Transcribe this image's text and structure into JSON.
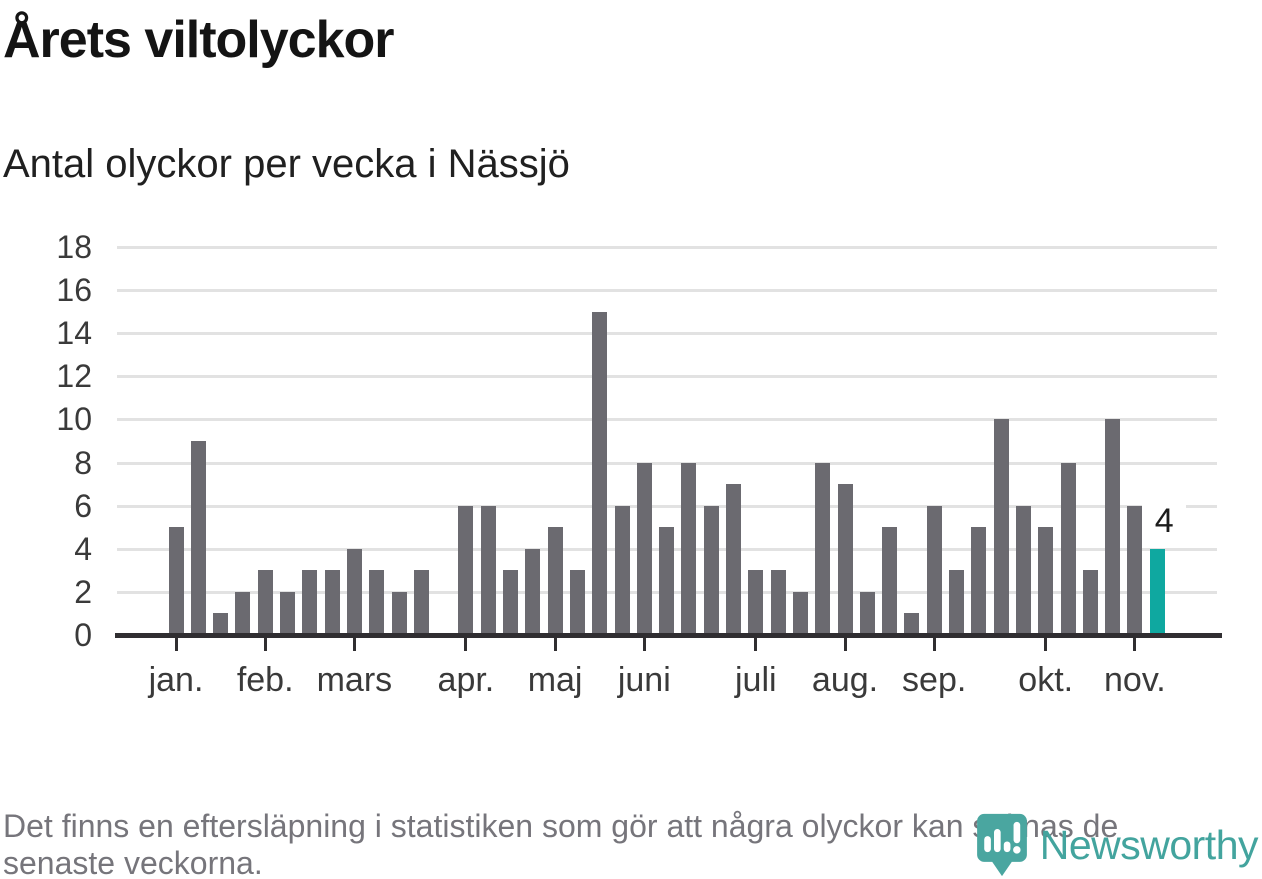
{
  "title": "Årets viltolyckor",
  "subtitle": "Antal olyckor per vecka i Nässjö",
  "footer": {
    "lines": [
      "Det finns en eftersläpning i statistiken som gör att några olyckor kan saknas de",
      "senaste veckorna."
    ]
  },
  "logo": {
    "wordmark": "Newsworthy",
    "icon": "newsworthy-pin-barchart-icon"
  },
  "colors": {
    "bar": "#6b6a70",
    "highlight_bar": "#0fa8a0",
    "gridline": "#e2e2e2",
    "axis": "#302e31",
    "logo_teal": "#45a5a0",
    "footer_text": "#76757b"
  },
  "chart_data": {
    "type": "bar",
    "title": "Årets viltolyckor",
    "subtitle": "Antal olyckor per vecka i Nässjö",
    "xlabel": "",
    "ylabel": "",
    "ylim": [
      0,
      18
    ],
    "yticks": [
      0,
      2,
      4,
      6,
      8,
      10,
      12,
      14,
      16,
      18
    ],
    "grid": true,
    "legend": "none",
    "x_unit": "vecka",
    "values": [
      5,
      9,
      1,
      2,
      3,
      2,
      3,
      3,
      4,
      3,
      2,
      3,
      0,
      6,
      6,
      3,
      4,
      5,
      3,
      15,
      6,
      8,
      5,
      8,
      6,
      7,
      3,
      3,
      2,
      8,
      7,
      2,
      5,
      1,
      6,
      3,
      5,
      10,
      6,
      5,
      8,
      3,
      10,
      6,
      4
    ],
    "month_ticks": [
      {
        "label": "jan.",
        "index": 0
      },
      {
        "label": "feb.",
        "index": 4
      },
      {
        "label": "mars",
        "index": 8
      },
      {
        "label": "apr.",
        "index": 13
      },
      {
        "label": "maj",
        "index": 17
      },
      {
        "label": "juni",
        "index": 21
      },
      {
        "label": "juli",
        "index": 26
      },
      {
        "label": "aug.",
        "index": 30
      },
      {
        "label": "sep.",
        "index": 34
      },
      {
        "label": "okt.",
        "index": 39
      },
      {
        "label": "nov.",
        "index": 43
      }
    ],
    "highlight_index": 44,
    "value_label": {
      "index": 44,
      "text": "4"
    }
  }
}
